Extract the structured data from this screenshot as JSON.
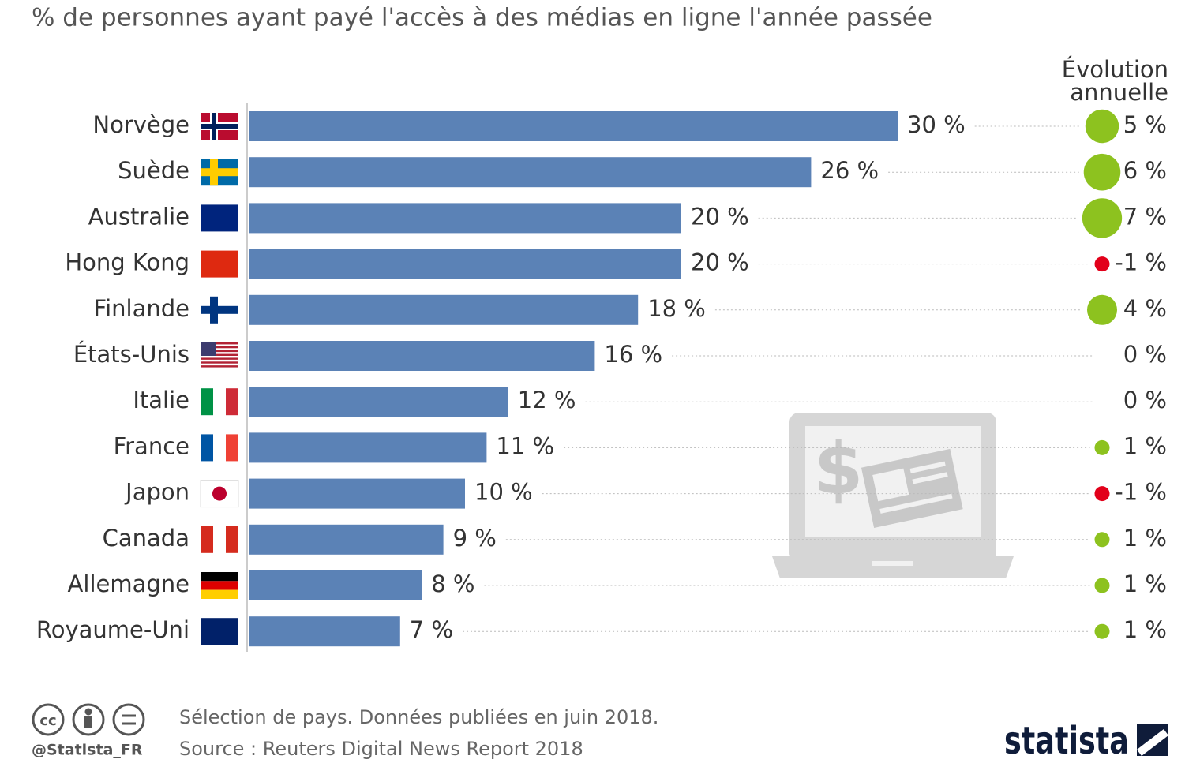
{
  "chart_data": {
    "type": "bar",
    "title": "% de personnes ayant payé l'accès à des médias en ligne l'année passée",
    "categories": [
      "Norvège",
      "Suède",
      "Australie",
      "Hong Kong",
      "Finlande",
      "États-Unis",
      "Italie",
      "France",
      "Japon",
      "Canada",
      "Allemagne",
      "Royaume-Uni"
    ],
    "series": [
      {
        "name": "% de personnes ayant payé",
        "color": "#5b82b6",
        "values": [
          30,
          26,
          20,
          20,
          18,
          16,
          12,
          11,
          10,
          9,
          8,
          7
        ],
        "value_labels": [
          "30 %",
          "26 %",
          "20 %",
          "20 %",
          "18 %",
          "16 %",
          "12 %",
          "11 %",
          "10 %",
          "9 %",
          "8 %",
          "7 %"
        ]
      },
      {
        "name": "Évolution annuelle",
        "color": "#8dc21f",
        "negative_color": "#e2001a",
        "values": [
          5,
          6,
          7,
          -1,
          4,
          0,
          0,
          1,
          -1,
          1,
          1,
          1
        ],
        "value_labels": [
          "5 %",
          "6 %",
          "7 %",
          "-1 %",
          "4 %",
          "0 %",
          "0 %",
          "1 %",
          "-1 %",
          "1 %",
          "1 %",
          "1 %"
        ]
      }
    ],
    "note": "Sélection de pays. Données publiées en juin 2018.",
    "source": "Source : Reuters Digital News Report 2018",
    "handle": "@Statista_FR",
    "brand": "statista"
  }
}
